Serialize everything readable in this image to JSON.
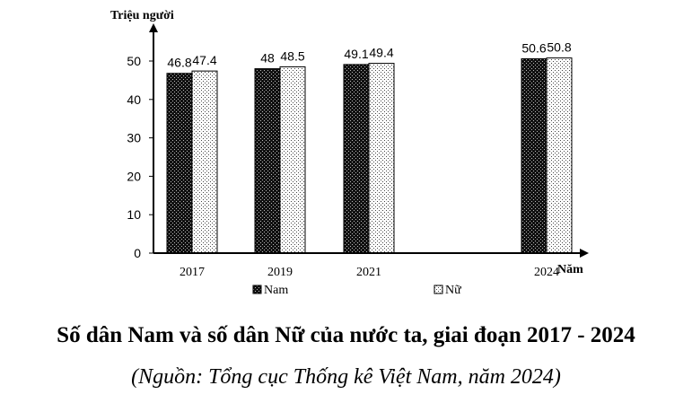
{
  "chart_data": {
    "type": "bar",
    "ylabel": "Triệu người",
    "xlabel": "Năm",
    "categories": [
      "2017",
      "2019",
      "2021",
      "2024"
    ],
    "x": [
      2017,
      2019,
      2021,
      2024
    ],
    "series": [
      {
        "name": "Nam",
        "values": [
          46.8,
          48,
          49.1,
          50.6
        ],
        "labels": [
          "46.8",
          "48",
          "49.1",
          "50.6"
        ]
      },
      {
        "name": "Nữ",
        "values": [
          47.4,
          48.5,
          49.4,
          50.8
        ],
        "labels": [
          "47.4",
          "48.5",
          "49.4",
          "50.8"
        ]
      }
    ],
    "yticks": [
      "0",
      "10",
      "20",
      "30",
      "40",
      "50"
    ],
    "ylim": [
      0,
      60
    ],
    "grid": false,
    "legend": "bottom",
    "colors": {
      "Nam": "#1a1a1a",
      "Nữ": "#ffffff"
    }
  },
  "caption": {
    "title": "Số dân Nam và số dân Nữ của nước ta, giai đoạn 2017 - 2024",
    "source": "(Nguồn: Tổng cục Thống kê Việt Nam, năm 2024)"
  }
}
